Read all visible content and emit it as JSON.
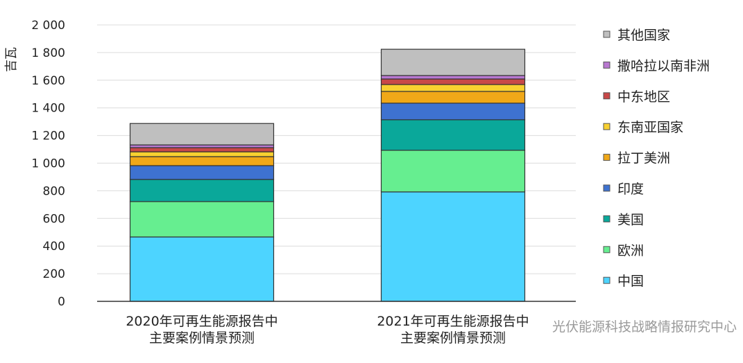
{
  "chart_data": {
    "type": "bar",
    "stacked": true,
    "title": "",
    "ylabel": "吉瓦",
    "xlabel": "",
    "ylim": [
      0,
      2000
    ],
    "yticks": [
      0,
      200,
      400,
      600,
      800,
      1000,
      1200,
      1400,
      1600,
      1800,
      2000
    ],
    "ytick_labels": [
      "0",
      "200",
      "400",
      "600",
      "800",
      "1 000",
      "1 200",
      "1 400",
      "1 600",
      "1 800",
      "2 000"
    ],
    "grid": true,
    "legend_placement": "right",
    "categories": [
      [
        "2020年可再生能源报告中",
        "主要案例情景预测"
      ],
      [
        "2021年可再生能源报告中",
        "主要案例情景预测"
      ]
    ],
    "series": [
      {
        "name": "中国",
        "color": "#4dd4ff",
        "values": [
          466,
          792
        ]
      },
      {
        "name": "欧洲",
        "color": "#66ee90",
        "values": [
          256,
          301
        ]
      },
      {
        "name": "美国",
        "color": "#0aa89a",
        "values": [
          160,
          221
        ]
      },
      {
        "name": "印度",
        "color": "#3e72d0",
        "values": [
          100,
          120
        ]
      },
      {
        "name": "拉丁美洲",
        "color": "#f0a818",
        "values": [
          65,
          85
        ]
      },
      {
        "name": "东南亚国家",
        "color": "#f8d030",
        "values": [
          35,
          50
        ]
      },
      {
        "name": "中东地区",
        "color": "#c84848",
        "values": [
          30,
          40
        ]
      },
      {
        "name": "撒哈拉以南非洲",
        "color": "#b878d0",
        "values": [
          20,
          25
        ]
      },
      {
        "name": "其他国家",
        "color": "#bfbfbf",
        "values": [
          155,
          190
        ]
      }
    ]
  },
  "watermark": "光伏能源科技战略情报研究中心"
}
